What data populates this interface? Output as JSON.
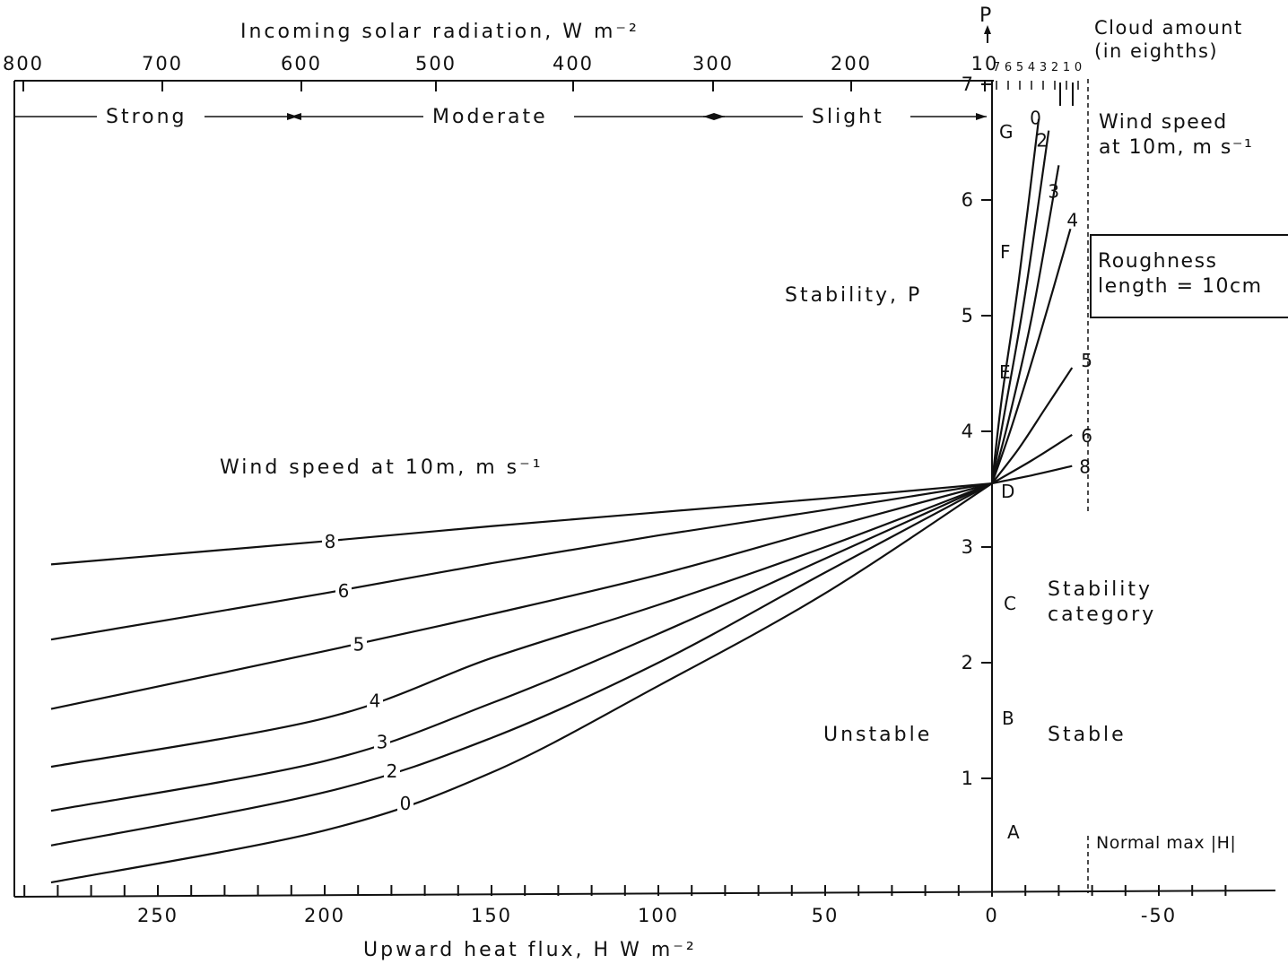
{
  "chart_data": {
    "type": "line",
    "title": "",
    "xlabel": "Upward heat flux, H W m⁻²",
    "x_top_label": "Incoming solar radiation, W m⁻²",
    "ylabel": "Stability, P",
    "y_top_label": "P",
    "xlim": [
      -70,
      282
    ],
    "ylim": [
      0,
      7
    ],
    "x_ticks": [
      250,
      200,
      150,
      100,
      50,
      0,
      -50
    ],
    "y_ticks": [
      1,
      2,
      3,
      4,
      5,
      6,
      7
    ],
    "solar_ticks": [
      "800",
      "700",
      "600",
      "500",
      "400",
      "300",
      "200",
      "10"
    ],
    "cloud_amount": {
      "title_line1": "Cloud amount",
      "title_line2": "(in eighths)",
      "ticks": [
        "7",
        "6",
        "5",
        "4",
        "3",
        "2",
        "1",
        "0"
      ]
    },
    "radiation_classes": [
      "Strong",
      "Moderate",
      "Slight"
    ],
    "stability_categories": [
      "A",
      "B",
      "C",
      "D",
      "E",
      "F",
      "G"
    ],
    "wind_speed_label_left": "Wind speed at 10m, m s⁻¹",
    "wind_speed_label_right_line1": "Wind speed",
    "wind_speed_label_right_line2": "at 10m, m s⁻¹",
    "roughness_line1": "Roughness",
    "roughness_line2": "length = 10cm",
    "stability_category_line1": "Stability",
    "stability_category_line2": "category",
    "unstable_label": "Unstable",
    "stable_label": "Stable",
    "normal_max_label": "Normal max |H|",
    "normal_max_H": -24,
    "series": [
      {
        "name": "8",
        "x": [
          282,
          200,
          150,
          100,
          50,
          0
        ],
        "y": [
          2.85,
          3.05,
          3.18,
          3.3,
          3.42,
          3.55
        ]
      },
      {
        "name": "6",
        "x": [
          282,
          200,
          150,
          100,
          50,
          0
        ],
        "y": [
          2.2,
          2.6,
          2.86,
          3.1,
          3.32,
          3.55
        ]
      },
      {
        "name": "5",
        "x": [
          282,
          200,
          150,
          100,
          50,
          0
        ],
        "y": [
          1.6,
          2.1,
          2.42,
          2.76,
          3.16,
          3.55
        ]
      },
      {
        "name": "4",
        "x": [
          282,
          200,
          150,
          100,
          50,
          0
        ],
        "y": [
          1.1,
          1.52,
          2.04,
          2.5,
          3.0,
          3.55
        ]
      },
      {
        "name": "3",
        "x": [
          282,
          200,
          150,
          100,
          50,
          0
        ],
        "y": [
          0.72,
          1.15,
          1.65,
          2.25,
          2.9,
          3.55
        ]
      },
      {
        "name": "2",
        "x": [
          282,
          200,
          150,
          100,
          50,
          0
        ],
        "y": [
          0.42,
          0.88,
          1.35,
          2.0,
          2.78,
          3.55
        ]
      },
      {
        "name": "0",
        "x": [
          282,
          200,
          150,
          100,
          50,
          0
        ],
        "y": [
          0.1,
          0.55,
          1.05,
          1.8,
          2.6,
          3.55
        ]
      }
    ],
    "stable_series": [
      {
        "name": "0",
        "x": [
          0,
          -3,
          -8,
          -14
        ],
        "y": [
          3.55,
          4.3,
          5.3,
          6.7
        ]
      },
      {
        "name": "2",
        "x": [
          0,
          -4,
          -10,
          -17
        ],
        "y": [
          3.55,
          4.2,
          5.2,
          6.6
        ]
      },
      {
        "name": "3",
        "x": [
          0,
          -5,
          -12,
          -20
        ],
        "y": [
          3.55,
          4.1,
          5.0,
          6.3
        ]
      },
      {
        "name": "4",
        "x": [
          0,
          -6,
          -14,
          -23.5
        ],
        "y": [
          3.55,
          4.05,
          4.8,
          5.75
        ]
      },
      {
        "name": "5",
        "x": [
          0,
          -8,
          -16,
          -24
        ],
        "y": [
          3.55,
          3.85,
          4.2,
          4.55
        ]
      },
      {
        "name": "6",
        "x": [
          0,
          -12,
          -24
        ],
        "y": [
          3.55,
          3.75,
          3.97
        ]
      },
      {
        "name": "8",
        "x": [
          0,
          -12,
          -24
        ],
        "y": [
          3.55,
          3.62,
          3.7
        ]
      }
    ]
  }
}
